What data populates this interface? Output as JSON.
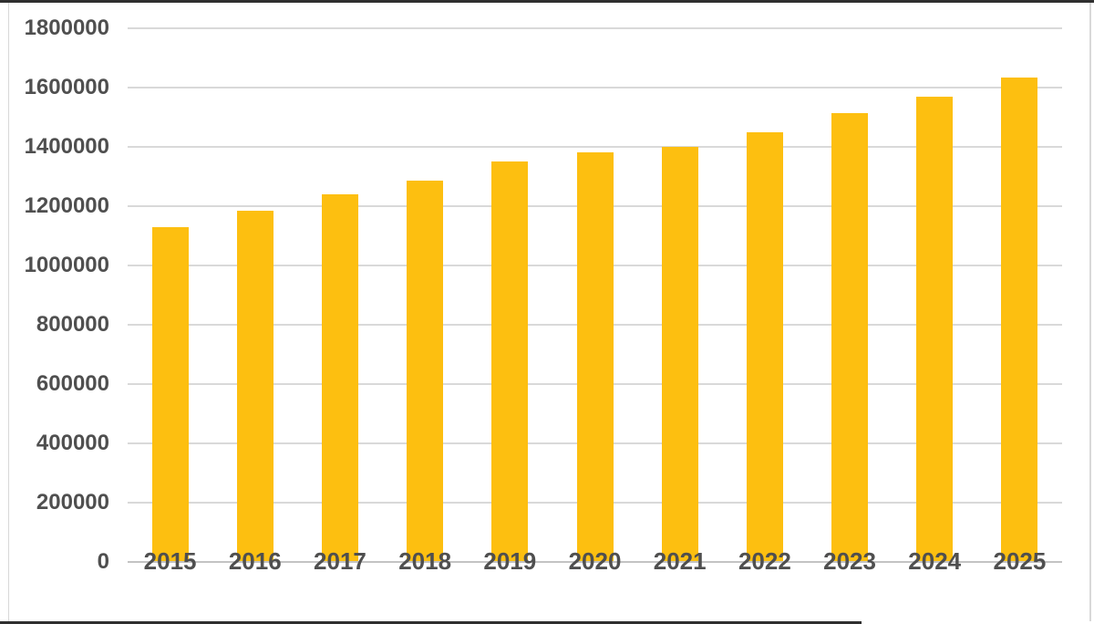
{
  "chart_data": {
    "type": "bar",
    "title": "",
    "xlabel": "",
    "ylabel": "",
    "categories": [
      "2015",
      "2016",
      "2017",
      "2018",
      "2019",
      "2020",
      "2021",
      "2022",
      "2023",
      "2024",
      "2025"
    ],
    "values": [
      1130000,
      1185000,
      1240000,
      1285000,
      1350000,
      1380000,
      1400000,
      1450000,
      1515000,
      1570000,
      1635000
    ],
    "ylim": [
      0,
      1800000
    ],
    "ytick_interval": 200000,
    "ytick_labels": [
      "1800000",
      "1600000",
      "1400000",
      "1200000",
      "1000000",
      "800000",
      "600000",
      "400000",
      "200000",
      "0"
    ],
    "grid": true,
    "legend": false,
    "series_name": ""
  },
  "colors": {
    "bar": "#FDBF10",
    "gridline": "#D9D9D9",
    "axis_line": "#C3C3C3",
    "label": "#4F4F4F",
    "background": "#FFFFFF",
    "frame_dark": "#2F2F2F",
    "frame_light": "#D8D8D8"
  }
}
